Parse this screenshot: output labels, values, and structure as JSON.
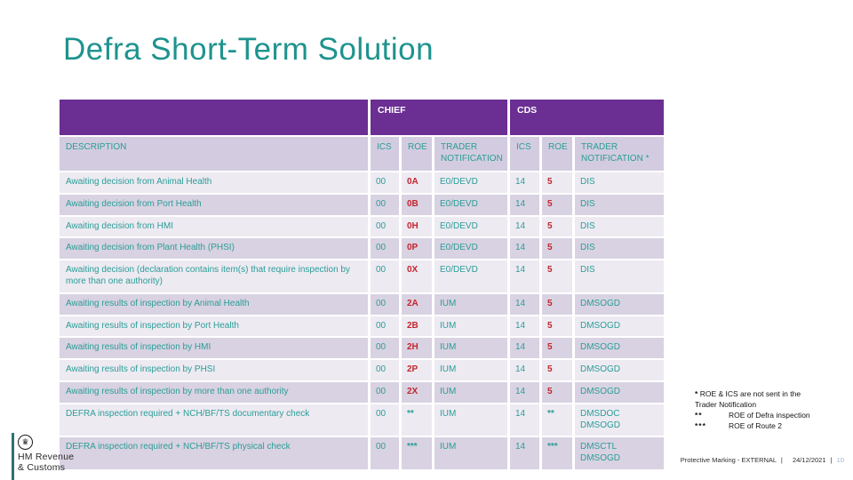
{
  "slide": {
    "title": "Defra Short-Term Solution"
  },
  "table": {
    "header_groups": [
      {
        "label": "",
        "span": 1,
        "name": "group-header-blank"
      },
      {
        "label": "CHIEF",
        "span": 3,
        "name": "group-header-chief"
      },
      {
        "label": "CDS",
        "span": 3,
        "name": "group-header-cds"
      }
    ],
    "columns": [
      "DESCRIPTION",
      "ICS",
      "ROE",
      "TRADER NOTIFICATION",
      "ICS",
      "ROE",
      "TRADER NOTIFICATION *"
    ],
    "rows": [
      {
        "desc": "Awaiting decision from Animal Health",
        "cells": [
          {
            "t": "00",
            "c": "t"
          },
          {
            "t": "0A",
            "c": "r"
          },
          {
            "t": "E0/DEVD",
            "c": "t"
          },
          {
            "t": "14",
            "c": "t"
          },
          {
            "t": "5",
            "c": "r"
          },
          {
            "t": "DIS",
            "c": "t"
          }
        ]
      },
      {
        "desc": "Awaiting decision from Port Health",
        "cells": [
          {
            "t": "00",
            "c": "t"
          },
          {
            "t": "0B",
            "c": "r"
          },
          {
            "t": "E0/DEVD",
            "c": "t"
          },
          {
            "t": "14",
            "c": "t"
          },
          {
            "t": "5",
            "c": "r"
          },
          {
            "t": "DIS",
            "c": "t"
          }
        ]
      },
      {
        "desc": "Awaiting decision from HMI",
        "cells": [
          {
            "t": "00",
            "c": "t"
          },
          {
            "t": "0H",
            "c": "r"
          },
          {
            "t": "E0/DEVD",
            "c": "t"
          },
          {
            "t": "14",
            "c": "t"
          },
          {
            "t": "5",
            "c": "r"
          },
          {
            "t": "DIS",
            "c": "t"
          }
        ]
      },
      {
        "desc": "Awaiting decision from Plant Health (PHSI)",
        "cells": [
          {
            "t": "00",
            "c": "t"
          },
          {
            "t": "0P",
            "c": "r"
          },
          {
            "t": "E0/DEVD",
            "c": "t"
          },
          {
            "t": "14",
            "c": "t"
          },
          {
            "t": "5",
            "c": "r"
          },
          {
            "t": "DIS",
            "c": "t"
          }
        ]
      },
      {
        "desc": "Awaiting decision (declaration contains item(s) that require inspection by more than one authority)",
        "cells": [
          {
            "t": "00",
            "c": "t"
          },
          {
            "t": "0X",
            "c": "r"
          },
          {
            "t": "E0/DEVD",
            "c": "t"
          },
          {
            "t": "14",
            "c": "t"
          },
          {
            "t": "5",
            "c": "r"
          },
          {
            "t": "DIS",
            "c": "t"
          }
        ]
      },
      {
        "desc": "Awaiting results of inspection by Animal Health",
        "cells": [
          {
            "t": "00",
            "c": "t"
          },
          {
            "t": "2A",
            "c": "r"
          },
          {
            "t": "IUM",
            "c": "t"
          },
          {
            "t": "14",
            "c": "t"
          },
          {
            "t": "5",
            "c": "r"
          },
          {
            "t": "DMSOGD",
            "c": "t"
          }
        ]
      },
      {
        "desc": "Awaiting results of inspection by Port Health",
        "cells": [
          {
            "t": "00",
            "c": "t"
          },
          {
            "t": "2B",
            "c": "r"
          },
          {
            "t": "IUM",
            "c": "t"
          },
          {
            "t": "14",
            "c": "t"
          },
          {
            "t": "5",
            "c": "r"
          },
          {
            "t": "DMSOGD",
            "c": "t"
          }
        ]
      },
      {
        "desc": "Awaiting results of inspection by HMI",
        "cells": [
          {
            "t": "00",
            "c": "t"
          },
          {
            "t": "2H",
            "c": "r"
          },
          {
            "t": "IUM",
            "c": "t"
          },
          {
            "t": "14",
            "c": "t"
          },
          {
            "t": "5",
            "c": "r"
          },
          {
            "t": "DMSOGD",
            "c": "t"
          }
        ]
      },
      {
        "desc": "Awaiting results of inspection by PHSI",
        "cells": [
          {
            "t": "00",
            "c": "t"
          },
          {
            "t": "2P",
            "c": "r"
          },
          {
            "t": "IUM",
            "c": "t"
          },
          {
            "t": "14",
            "c": "t"
          },
          {
            "t": "5",
            "c": "r"
          },
          {
            "t": "DMSOGD",
            "c": "t"
          }
        ]
      },
      {
        "desc": "Awaiting results of inspection by more than one authority",
        "cells": [
          {
            "t": "00",
            "c": "t"
          },
          {
            "t": "2X",
            "c": "r"
          },
          {
            "t": "IUM",
            "c": "t"
          },
          {
            "t": "14",
            "c": "t"
          },
          {
            "t": "5",
            "c": "r"
          },
          {
            "t": "DMSOGD",
            "c": "t"
          }
        ]
      },
      {
        "desc": "DEFRA inspection required + NCH/BF/TS documentary check",
        "cells": [
          {
            "t": "00",
            "c": "t"
          },
          {
            "t": "**",
            "c": "tb"
          },
          {
            "t": "IUM",
            "c": "t"
          },
          {
            "t": "14",
            "c": "t"
          },
          {
            "t": "**",
            "c": "tb"
          },
          {
            "t": "DMSDOC\nDMSOGD",
            "c": "t"
          }
        ]
      },
      {
        "desc": "DEFRA inspection required + NCH/BF/TS physical check",
        "cells": [
          {
            "t": "00",
            "c": "t"
          },
          {
            "t": "***",
            "c": "tb"
          },
          {
            "t": "IUM",
            "c": "t"
          },
          {
            "t": "14",
            "c": "t"
          },
          {
            "t": "***",
            "c": "tb"
          },
          {
            "t": "DMSCTL\nDMSOGD",
            "c": "t"
          }
        ]
      }
    ]
  },
  "footnotes": {
    "line1_mark": "*",
    "line1_text": "ROE & ICS are not sent in the Trader Notification",
    "items": [
      {
        "mark": "**",
        "text": "ROE of Defra inspection"
      },
      {
        "mark": "***",
        "text": "ROE of Route 2"
      }
    ]
  },
  "footer": {
    "marking": "Protective Marking - EXTERNAL",
    "separator": "|",
    "date": "24/12/2021",
    "page": "10"
  },
  "logo": {
    "line1": "HM Revenue",
    "line2": "& Customs",
    "crown_glyph": "♛"
  },
  "colors": {
    "purple": "#6B2E93",
    "teal_text": "#2A9D97",
    "title_teal": "#1E938E",
    "red_roe": "#C2262E",
    "row_light": "#EDEAF2",
    "row_dark": "#D9D2E2",
    "header_lavender": "#D3CCE0",
    "accent_teal": "#2F716E",
    "page_number": "#9FB6C9"
  }
}
